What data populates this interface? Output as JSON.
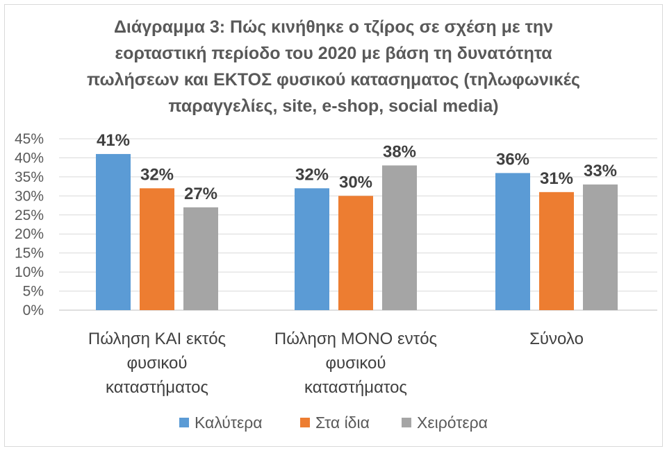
{
  "chart_data": {
    "type": "bar",
    "title": "Διάγραμμα 3: Πώς κινήθηκε ο τζίρος σε σχέση με την εορταστική περίοδο του 2020 με βάση τη δυνατότητα πωλήσεων και ΕΚΤΟΣ φυσικού κατασηματος (τηλωφωνικές παραγγελίες, site, e-shop, social media)",
    "title_lines": [
      "Διάγραμμα 3: Πώς κινήθηκε ο τζίρος σε σχέση με την",
      "εορταστική περίοδο του 2020 με βάση τη δυνατότητα",
      "πωλήσεων και ΕΚΤΟΣ φυσικού κατασηματος (τηλωφωνικές",
      "παραγγελίες, site, e-shop, social media)"
    ],
    "categories": [
      [
        "Πώληση ΚΑΙ εκτός",
        "φυσικού",
        "καταστήματος"
      ],
      [
        "Πώληση ΜΟΝΟ εντός",
        "φυσικού",
        "καταστήματος"
      ],
      [
        "Σύνολο"
      ]
    ],
    "series": [
      {
        "name": "Καλύτερα",
        "color": "#5b9bd5",
        "values": [
          41,
          32,
          36
        ]
      },
      {
        "name": "Στα ίδια",
        "color": "#ed7d31",
        "values": [
          32,
          30,
          31
        ]
      },
      {
        "name": "Χειρότερα",
        "color": "#a5a5a5",
        "values": [
          27,
          38,
          33
        ]
      }
    ],
    "y_ticks": [
      "0%",
      "5%",
      "10%",
      "15%",
      "20%",
      "25%",
      "30%",
      "35%",
      "40%",
      "45%"
    ],
    "ylim": [
      0,
      45
    ],
    "value_suffix": "%",
    "grid": true,
    "legend_position": "bottom"
  }
}
